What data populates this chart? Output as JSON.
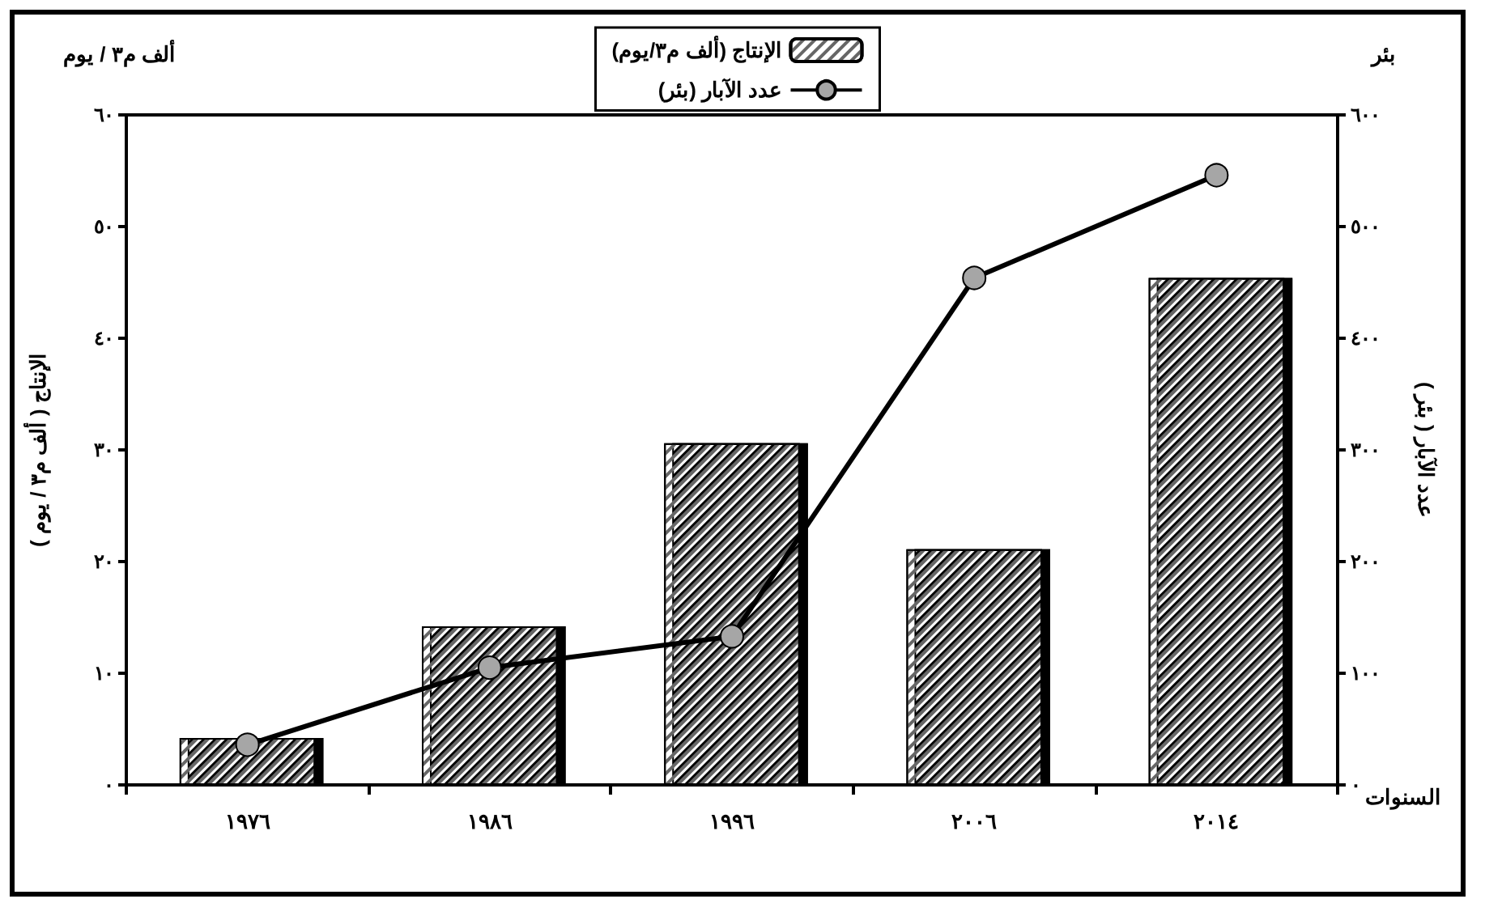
{
  "chart_data": {
    "type": "bar",
    "xlabel": "السنوات",
    "ylabel": "الإنتاج ( ألف م٣ / يوم )",
    "y2label": "عدد الآبار ( بئر )",
    "annotations": [
      "ألف م٣ / يوم",
      "بئر"
    ],
    "categories": [
      "١٩٧٦",
      "١٩٨٦",
      "١٩٩٦",
      "٢٠٠٦",
      "٢٠١٤"
    ],
    "series": [
      {
        "name": "الإنتاج (ألف م٣/يوم)",
        "color": "#ffffff",
        "values": [
          4.2,
          14.2,
          30.6,
          21.1,
          45.4
        ]
      },
      {
        "name": "عدد الآبار (بئر)",
        "type": "line",
        "axis": "y2",
        "color": "#000000",
        "marker": "circle",
        "values": [
          36,
          105,
          133,
          454,
          546
        ]
      }
    ],
    "ylim": [
      0,
      60
    ],
    "yticks": [
      {
        "value": 0,
        "label": "٠"
      },
      {
        "value": 10,
        "label": "١٠"
      },
      {
        "value": 20,
        "label": "٢٠"
      },
      {
        "value": 30,
        "label": "٣٠"
      },
      {
        "value": 40,
        "label": "٤٠"
      },
      {
        "value": 50,
        "label": "٥٠"
      },
      {
        "value": 60,
        "label": "٦٠"
      }
    ],
    "y2lim": [
      0,
      600
    ],
    "y2ticks": [
      {
        "value": 0,
        "label": "٠"
      },
      {
        "value": 100,
        "label": "١٠٠"
      },
      {
        "value": 200,
        "label": "٢٠٠"
      },
      {
        "value": 300,
        "label": "٣٠٠"
      },
      {
        "value": 400,
        "label": "٤٠٠"
      },
      {
        "value": 500,
        "label": "٥٠٠"
      },
      {
        "value": 600,
        "label": "٦٠٠"
      }
    ],
    "grid": false,
    "legend": "top"
  }
}
